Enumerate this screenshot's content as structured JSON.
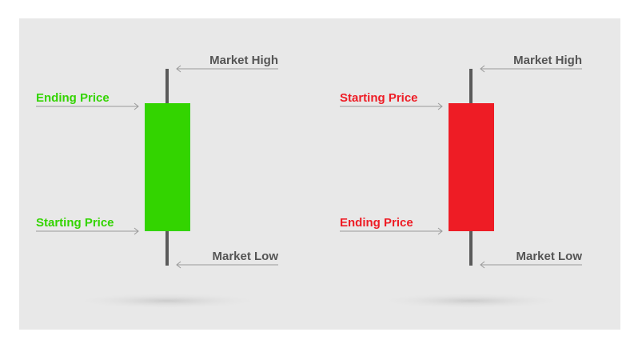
{
  "colors": {
    "bullish": "#33d400",
    "bearish": "#ee1c25",
    "wick": "#5a5a5a",
    "arrow": "#9a9a9a",
    "label_dark": "#555555",
    "background": "#e8e8e8"
  },
  "candles": [
    {
      "kind": "bullish",
      "top_left_label": "Ending Price",
      "bottom_left_label": "Starting Price",
      "top_right_label": "Market High",
      "bottom_right_label": "Market Low"
    },
    {
      "kind": "bearish",
      "top_left_label": "Starting Price",
      "bottom_left_label": "Ending Price",
      "top_right_label": "Market High",
      "bottom_right_label": "Market Low"
    }
  ]
}
